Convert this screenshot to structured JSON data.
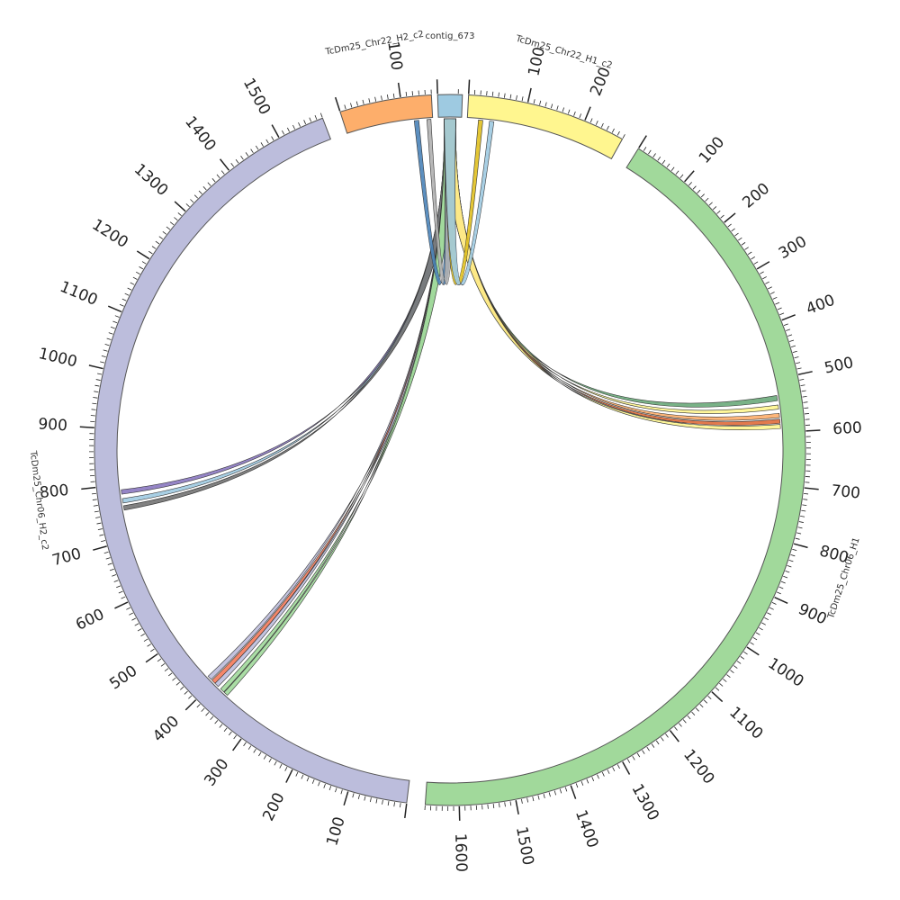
{
  "diagram": {
    "type": "circos",
    "segments": [
      {
        "id": "contig",
        "name": "contig_673",
        "label": "contig_673",
        "length": 12,
        "start_deg": -2.0,
        "end_deg": 2.0,
        "color": "#9ecae1",
        "ticks": []
      },
      {
        "id": "h1c2",
        "name": "TcDm25_Chr22_H1_c2",
        "label": "TcDm25_Chr22_H1_c2",
        "length": 270,
        "start_deg": 3.0,
        "end_deg": 29.0,
        "color": "#fff68f",
        "ticks": [
          100,
          200
        ]
      },
      {
        "id": "chr06h1",
        "name": "TcDm25_Chr06_H1",
        "label": "TcDm25_Chr06_H1",
        "length": 1660,
        "start_deg": 32.0,
        "end_deg": 184.0,
        "color": "#a1d99b",
        "ticks": [
          100,
          200,
          300,
          400,
          500,
          600,
          700,
          800,
          900,
          1000,
          1100,
          1200,
          1300,
          1400,
          1500,
          1600
        ]
      },
      {
        "id": "chr06h2",
        "name": "TcDm25_Chr06_H2_c2",
        "label": "TcDm25_Chr06_H2_c2",
        "length": 1580,
        "start_deg": 187.0,
        "end_deg": 339.0,
        "color": "#bcbddc",
        "ticks": [
          100,
          200,
          300,
          400,
          500,
          600,
          700,
          800,
          900,
          1000,
          1100,
          1200,
          1300,
          1400,
          1500
        ]
      },
      {
        "id": "h2c2",
        "name": "TcDm25_Chr22_H2_c2",
        "label": "TcDm25_Chr22_H2_c2",
        "length": 150,
        "start_deg": 342.0,
        "end_deg": 357.0,
        "color": "#fdae6b",
        "ticks": [
          100
        ]
      }
    ],
    "links": [
      {
        "from": "contig",
        "from_pos": [
          3,
          9
        ],
        "to": "chr06h1",
        "to_pos": [
          530,
          540
        ],
        "color": "#6aaa7a"
      },
      {
        "from": "contig",
        "from_pos": [
          3,
          9
        ],
        "to": "chr06h1",
        "to_pos": [
          548,
          556
        ],
        "color": "#fff68f"
      },
      {
        "from": "contig",
        "from_pos": [
          3,
          9
        ],
        "to": "chr06h1",
        "to_pos": [
          564,
          572
        ],
        "color": "#fdae6b"
      },
      {
        "from": "contig",
        "from_pos": [
          3,
          9
        ],
        "to": "chr06h1",
        "to_pos": [
          575,
          583
        ],
        "color": "#e06b3a"
      },
      {
        "from": "contig",
        "from_pos": [
          3,
          9
        ],
        "to": "chr06h1",
        "to_pos": [
          585,
          593
        ],
        "color": "#fff68f"
      },
      {
        "from": "contig",
        "from_pos": [
          3,
          9
        ],
        "to": "chr06h2",
        "to_pos": [
          783,
          791
        ],
        "color": "#8a78c0"
      },
      {
        "from": "contig",
        "from_pos": [
          3,
          9
        ],
        "to": "chr06h2",
        "to_pos": [
          767,
          775
        ],
        "color": "#9ecae1"
      },
      {
        "from": "contig",
        "from_pos": [
          3,
          9
        ],
        "to": "chr06h2",
        "to_pos": [
          754,
          762
        ],
        "color": "#737373"
      },
      {
        "from": "contig",
        "from_pos": [
          3,
          9
        ],
        "to": "chr06h2",
        "to_pos": [
          407,
          415
        ],
        "color": "#bcbddc"
      },
      {
        "from": "contig",
        "from_pos": [
          3,
          9
        ],
        "to": "chr06h2",
        "to_pos": [
          397,
          405
        ],
        "color": "#f47a5a"
      },
      {
        "from": "contig",
        "from_pos": [
          3,
          9
        ],
        "to": "chr06h2",
        "to_pos": [
          389,
          397
        ],
        "color": "#bcbddc"
      },
      {
        "from": "contig",
        "from_pos": [
          3,
          9
        ],
        "to": "chr06h2",
        "to_pos": [
          375,
          383
        ],
        "color": "#a1d99b"
      },
      {
        "from": "contig",
        "from_pos": [
          3,
          9
        ],
        "to": "chr06h2",
        "to_pos": [
          366,
          374
        ],
        "color": "#a1d99b"
      },
      {
        "from": "contig",
        "from_pos": [
          3,
          9
        ],
        "to": "h2c2",
        "to_pos": [
          118,
          126
        ],
        "color": "#4a83b8"
      },
      {
        "from": "contig",
        "from_pos": [
          3,
          9
        ],
        "to": "h2c2",
        "to_pos": [
          140,
          147
        ],
        "color": "#b0b0b0"
      },
      {
        "from": "contig",
        "from_pos": [
          3,
          9
        ],
        "to": "h1c2",
        "to_pos": [
          20,
          28
        ],
        "color": "#e0c020"
      },
      {
        "from": "contig",
        "from_pos": [
          3,
          9
        ],
        "to": "h1c2",
        "to_pos": [
          40,
          48
        ],
        "color": "#9ecae1"
      }
    ]
  }
}
